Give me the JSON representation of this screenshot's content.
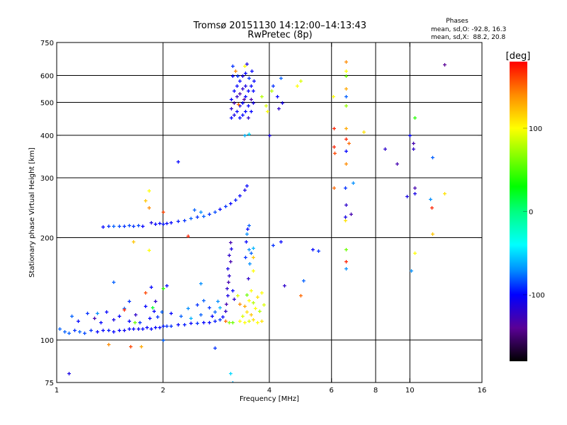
{
  "chart_data": {
    "type": "scatter",
    "title": "Tromsø 20151130 14:12:00–14:13:43",
    "subtitle": "RwPretec (8p)",
    "xlabel": "Frequency [MHz]",
    "ylabel": "Stationary phase Virtual Height [km]",
    "xscale": "log",
    "yscale": "log",
    "xlim": [
      1,
      16
    ],
    "ylim": [
      75,
      750
    ],
    "xticks": [
      1,
      2,
      4,
      6,
      8,
      10,
      16
    ],
    "xtick_labels": [
      "1",
      "2",
      "4",
      "6",
      "8",
      "10",
      "16"
    ],
    "yticks": [
      75,
      100,
      200,
      300,
      400,
      500,
      600,
      750
    ],
    "ytick_labels": [
      "75",
      "100",
      "200",
      "300",
      "400",
      "500",
      "600",
      "750"
    ],
    "grid_x": [
      2,
      4,
      6,
      8,
      10
    ],
    "grid_y": [
      100,
      200,
      300,
      400,
      500,
      600
    ],
    "grid": true,
    "stats": {
      "heading": "Phases",
      "line_o": "mean, sd,O: -92.8, 16.3",
      "line_x": "mean, sd,X:  88.2, 20.8"
    },
    "colorbar": {
      "label": "[deg]",
      "range": [
        -180,
        180
      ],
      "ticks": [
        100,
        0,
        -100
      ],
      "tick_labels": [
        "100",
        "0",
        "-100"
      ],
      "stops": [
        {
          "v": -180,
          "color": "#000000"
        },
        {
          "v": -140,
          "color": "#5a0096"
        },
        {
          "v": -100,
          "color": "#0000ff"
        },
        {
          "v": -70,
          "color": "#0090ff"
        },
        {
          "v": -40,
          "color": "#00ffff"
        },
        {
          "v": 0,
          "color": "#00ff80"
        },
        {
          "v": 30,
          "color": "#00ff00"
        },
        {
          "v": 100,
          "color": "#ffff00"
        },
        {
          "v": 140,
          "color": "#ff8c00"
        },
        {
          "v": 180,
          "color": "#ff0000"
        }
      ]
    },
    "point_fields": [
      "frequency_MHz",
      "height_km",
      "phase_deg"
    ],
    "points": [
      [
        1.02,
        108,
        -80
      ],
      [
        1.05,
        106,
        -80
      ],
      [
        1.08,
        105,
        -80
      ],
      [
        1.12,
        107,
        -90
      ],
      [
        1.16,
        106,
        -80
      ],
      [
        1.2,
        105,
        -85
      ],
      [
        1.25,
        107,
        -90
      ],
      [
        1.3,
        106,
        -100
      ],
      [
        1.35,
        107,
        -100
      ],
      [
        1.4,
        107,
        -95
      ],
      [
        1.45,
        106,
        -100
      ],
      [
        1.5,
        107,
        -100
      ],
      [
        1.55,
        107,
        -105
      ],
      [
        1.6,
        108,
        -100
      ],
      [
        1.65,
        108,
        -100
      ],
      [
        1.7,
        108,
        -105
      ],
      [
        1.75,
        108,
        -100
      ],
      [
        1.8,
        109,
        -100
      ],
      [
        1.85,
        108,
        -100
      ],
      [
        1.9,
        109,
        -100
      ],
      [
        1.95,
        109,
        -100
      ],
      [
        2.0,
        110,
        -95
      ],
      [
        2.05,
        110,
        -90
      ],
      [
        2.1,
        110,
        -90
      ],
      [
        2.2,
        111,
        -100
      ],
      [
        2.3,
        111,
        -95
      ],
      [
        2.4,
        112,
        -100
      ],
      [
        2.5,
        112,
        -90
      ],
      [
        2.6,
        113,
        -100
      ],
      [
        2.7,
        113,
        -100
      ],
      [
        2.8,
        114,
        -95
      ],
      [
        2.9,
        115,
        -90
      ],
      [
        1.1,
        118,
        -80
      ],
      [
        1.15,
        114,
        -100
      ],
      [
        1.22,
        120,
        -90
      ],
      [
        1.28,
        116,
        -130
      ],
      [
        1.33,
        113,
        -100
      ],
      [
        1.38,
        121,
        -100
      ],
      [
        1.45,
        115,
        -110
      ],
      [
        1.5,
        118,
        -100
      ],
      [
        1.55,
        124,
        -80
      ],
      [
        1.6,
        114,
        -100
      ],
      [
        1.67,
        119,
        -120
      ],
      [
        1.72,
        113,
        -90
      ],
      [
        1.78,
        126,
        -100
      ],
      [
        1.83,
        116,
        -100
      ],
      [
        1.88,
        122,
        -100
      ],
      [
        1.9,
        130,
        -120
      ],
      [
        1.93,
        117,
        -90
      ],
      [
        1.98,
        121,
        -80
      ],
      [
        2.1,
        120,
        -100
      ],
      [
        2.25,
        118,
        -80
      ],
      [
        2.35,
        124,
        -70
      ],
      [
        2.4,
        116,
        -60
      ],
      [
        2.5,
        127,
        -90
      ],
      [
        2.55,
        119,
        -80
      ],
      [
        2.6,
        131,
        -80
      ],
      [
        2.7,
        125,
        -90
      ],
      [
        2.75,
        118,
        -100
      ],
      [
        2.8,
        121,
        -80
      ],
      [
        2.85,
        130,
        -70
      ],
      [
        2.9,
        125,
        -60
      ],
      [
        2.95,
        117,
        -100
      ],
      [
        2.55,
        147,
        -70
      ],
      [
        2.05,
        145,
        -100
      ],
      [
        1.85,
        143,
        -100
      ],
      [
        1.6,
        130,
        -90
      ],
      [
        1.55,
        123,
        170
      ],
      [
        1.78,
        138,
        160
      ],
      [
        1.45,
        148,
        -80
      ],
      [
        1.3,
        120,
        -70
      ],
      [
        2.0,
        142,
        40
      ],
      [
        1.87,
        125,
        20
      ],
      [
        1.66,
        113,
        60
      ],
      [
        3.0,
        122,
        -120
      ],
      [
        3.02,
        128,
        -130
      ],
      [
        3.05,
        135,
        -110
      ],
      [
        3.03,
        142,
        -120
      ],
      [
        3.06,
        148,
        -130
      ],
      [
        3.08,
        155,
        -120
      ],
      [
        3.04,
        162,
        -110
      ],
      [
        3.1,
        170,
        -130
      ],
      [
        3.07,
        178,
        -120
      ],
      [
        3.12,
        186,
        -110
      ],
      [
        3.1,
        194,
        -130
      ],
      [
        3.15,
        140,
        -100
      ],
      [
        3.18,
        132,
        -120
      ],
      [
        3.0,
        114,
        150
      ],
      [
        3.08,
        113,
        70
      ],
      [
        3.15,
        113,
        60
      ],
      [
        3.3,
        114,
        100
      ],
      [
        3.4,
        113,
        100
      ],
      [
        3.5,
        114,
        90
      ],
      [
        3.6,
        115,
        110
      ],
      [
        3.7,
        113,
        100
      ],
      [
        3.8,
        114,
        110
      ],
      [
        3.35,
        118,
        90
      ],
      [
        3.45,
        121,
        110
      ],
      [
        3.55,
        119,
        120
      ],
      [
        3.65,
        124,
        100
      ],
      [
        3.75,
        122,
        80
      ],
      [
        3.85,
        127,
        90
      ],
      [
        3.4,
        126,
        130
      ],
      [
        3.5,
        131,
        100
      ],
      [
        3.6,
        129,
        80
      ],
      [
        3.7,
        134,
        110
      ],
      [
        3.8,
        138,
        100
      ],
      [
        3.3,
        128,
        140
      ],
      [
        3.55,
        140,
        100
      ],
      [
        3.25,
        135,
        90
      ],
      [
        3.45,
        136,
        60
      ],
      [
        1.35,
        215,
        -100
      ],
      [
        1.4,
        217,
        -90
      ],
      [
        1.45,
        216,
        -80
      ],
      [
        1.5,
        217,
        -85
      ],
      [
        1.55,
        217,
        -90
      ],
      [
        1.6,
        218,
        -85
      ],
      [
        1.65,
        217,
        -90
      ],
      [
        1.7,
        218,
        -85
      ],
      [
        1.75,
        217,
        -100
      ],
      [
        1.85,
        222,
        -110
      ],
      [
        1.9,
        220,
        -100
      ],
      [
        1.95,
        221,
        -100
      ],
      [
        2.0,
        220,
        -95
      ],
      [
        2.05,
        221,
        -100
      ],
      [
        2.1,
        222,
        -100
      ],
      [
        2.2,
        224,
        -95
      ],
      [
        2.3,
        225,
        -90
      ],
      [
        2.4,
        228,
        -80
      ],
      [
        2.5,
        230,
        -90
      ],
      [
        2.6,
        232,
        -80
      ],
      [
        2.7,
        235,
        -90
      ],
      [
        2.8,
        238,
        -85
      ],
      [
        2.9,
        243,
        -100
      ],
      [
        3.0,
        248,
        -90
      ],
      [
        3.1,
        252,
        -100
      ],
      [
        3.2,
        258,
        -95
      ],
      [
        3.3,
        266,
        -100
      ],
      [
        3.4,
        277,
        -110
      ],
      [
        3.45,
        285,
        -100
      ],
      [
        2.45,
        242,
        -80
      ],
      [
        2.55,
        238,
        -70
      ],
      [
        1.82,
        245,
        140
      ],
      [
        1.82,
        275,
        100
      ],
      [
        1.78,
        257,
        120
      ],
      [
        2.0,
        238,
        160
      ],
      [
        3.45,
        205,
        -70
      ],
      [
        3.47,
        212,
        -100
      ],
      [
        3.5,
        218,
        -80
      ],
      [
        3.44,
        195,
        -100
      ],
      [
        3.5,
        185,
        -70
      ],
      [
        3.55,
        180,
        -80
      ],
      [
        3.42,
        175,
        -90
      ],
      [
        3.52,
        168,
        -70
      ],
      [
        3.6,
        187,
        -60
      ],
      [
        3.48,
        152,
        -120
      ],
      [
        3.6,
        160,
        100
      ],
      [
        3.6,
        175,
        120
      ],
      [
        3.12,
        450,
        -100
      ],
      [
        3.12,
        480,
        -120
      ],
      [
        3.12,
        510,
        -100
      ],
      [
        3.14,
        600,
        -100
      ],
      [
        3.15,
        640,
        -90
      ],
      [
        3.18,
        460,
        -110
      ],
      [
        3.18,
        500,
        -130
      ],
      [
        3.18,
        540,
        -100
      ],
      [
        3.2,
        620,
        140
      ],
      [
        3.24,
        470,
        -100
      ],
      [
        3.24,
        520,
        -120
      ],
      [
        3.24,
        560,
        -100
      ],
      [
        3.25,
        600,
        -90
      ],
      [
        3.3,
        450,
        -100
      ],
      [
        3.3,
        490,
        -110
      ],
      [
        3.3,
        530,
        -130
      ],
      [
        3.3,
        580,
        -100
      ],
      [
        3.36,
        460,
        -100
      ],
      [
        3.36,
        500,
        -100
      ],
      [
        3.36,
        550,
        -120
      ],
      [
        3.36,
        600,
        -110
      ],
      [
        3.4,
        640,
        100
      ],
      [
        3.42,
        470,
        -100
      ],
      [
        3.42,
        520,
        -100
      ],
      [
        3.42,
        560,
        -110
      ],
      [
        3.42,
        610,
        -100
      ],
      [
        3.45,
        650,
        -110
      ],
      [
        3.48,
        450,
        -120
      ],
      [
        3.48,
        490,
        -100
      ],
      [
        3.48,
        540,
        -100
      ],
      [
        3.5,
        590,
        -90
      ],
      [
        3.54,
        470,
        -100
      ],
      [
        3.54,
        510,
        -130
      ],
      [
        3.54,
        560,
        -100
      ],
      [
        3.56,
        620,
        -100
      ],
      [
        3.6,
        500,
        -110
      ],
      [
        3.6,
        540,
        -100
      ],
      [
        3.62,
        580,
        -100
      ],
      [
        3.38,
        510,
        -140
      ],
      [
        3.27,
        495,
        150
      ],
      [
        4.1,
        560,
        -90
      ],
      [
        4.2,
        520,
        -100
      ],
      [
        4.3,
        590,
        -80
      ],
      [
        4.35,
        500,
        -110
      ],
      [
        4.25,
        480,
        -120
      ],
      [
        3.8,
        520,
        80
      ],
      [
        3.9,
        490,
        90
      ],
      [
        3.95,
        470,
        100
      ],
      [
        4.9,
        580,
        90
      ],
      [
        4.8,
        560,
        100
      ],
      [
        4.05,
        540,
        80
      ],
      [
        6.1,
        420,
        170
      ],
      [
        6.1,
        370,
        170
      ],
      [
        6.12,
        355,
        160
      ],
      [
        6.1,
        280,
        150
      ],
      [
        6.05,
        520,
        100
      ],
      [
        6.6,
        660,
        140
      ],
      [
        6.6,
        620,
        100
      ],
      [
        6.6,
        600,
        60
      ],
      [
        6.6,
        550,
        130
      ],
      [
        6.6,
        520,
        -80
      ],
      [
        6.6,
        490,
        70
      ],
      [
        6.6,
        420,
        130
      ],
      [
        6.6,
        390,
        170
      ],
      [
        6.6,
        360,
        -100
      ],
      [
        6.6,
        330,
        140
      ],
      [
        6.55,
        280,
        -90
      ],
      [
        6.6,
        250,
        -120
      ],
      [
        6.55,
        230,
        -110
      ],
      [
        6.6,
        185,
        60
      ],
      [
        6.6,
        170,
        170
      ],
      [
        6.6,
        162,
        -70
      ],
      [
        6.55,
        225,
        110
      ],
      [
        6.7,
        380,
        150
      ],
      [
        6.8,
        235,
        -130
      ],
      [
        6.9,
        290,
        -70
      ],
      [
        7.4,
        410,
        110
      ],
      [
        8.5,
        365,
        -120
      ],
      [
        9.2,
        330,
        -130
      ],
      [
        10.0,
        400,
        -100
      ],
      [
        10.2,
        380,
        -130
      ],
      [
        10.2,
        365,
        -120
      ],
      [
        10.3,
        280,
        -130
      ],
      [
        10.3,
        270,
        -110
      ],
      [
        10.1,
        160,
        -70
      ],
      [
        10.3,
        180,
        100
      ],
      [
        10.3,
        450,
        40
      ],
      [
        9.8,
        265,
        -110
      ],
      [
        11.4,
        260,
        -70
      ],
      [
        11.5,
        245,
        170
      ],
      [
        11.6,
        205,
        120
      ],
      [
        12.5,
        270,
        110
      ],
      [
        11.6,
        345,
        -80
      ],
      [
        12.5,
        645,
        -140
      ],
      [
        4.3,
        195,
        -100
      ],
      [
        4.1,
        190,
        -90
      ],
      [
        5.3,
        185,
        -100
      ],
      [
        5.5,
        183,
        -90
      ],
      [
        5.0,
        150,
        -80
      ],
      [
        4.9,
        135,
        150
      ],
      [
        4.4,
        145,
        -120
      ],
      [
        4.0,
        400,
        -110
      ],
      [
        3.5,
        404,
        -50
      ],
      [
        3.15,
        75,
        -60
      ],
      [
        3.1,
        80,
        -50
      ],
      [
        1.08,
        80,
        -110
      ],
      [
        1.4,
        97,
        140
      ],
      [
        1.62,
        96,
        160
      ],
      [
        1.73,
        96,
        130
      ],
      [
        2.0,
        100,
        -80
      ],
      [
        2.8,
        95,
        -90
      ],
      [
        1.82,
        184,
        100
      ],
      [
        1.65,
        195,
        120
      ],
      [
        2.2,
        335,
        -100
      ],
      [
        2.35,
        202,
        170
      ],
      [
        3.4,
        400,
        -60
      ]
    ]
  }
}
